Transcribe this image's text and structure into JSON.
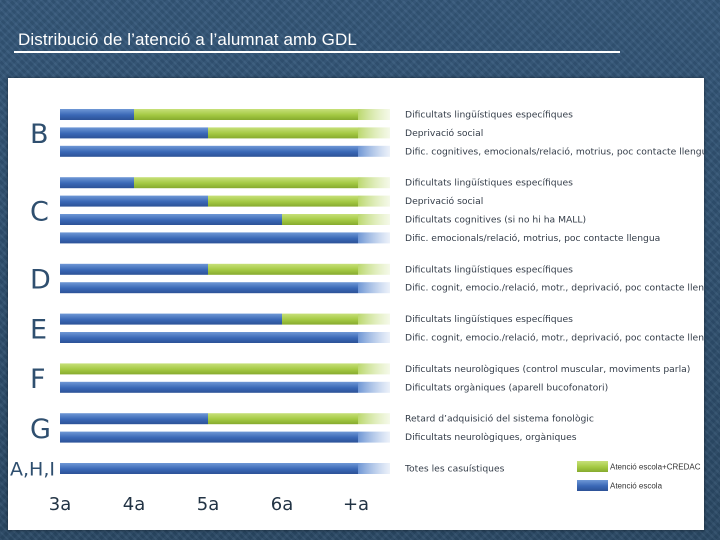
{
  "slide": {
    "title": "Distribució de l’atenció a l’alumnat amb GDL"
  },
  "colors": {
    "blue_dark": "#3a68b6",
    "blue_light": "#8fb4e3",
    "green": "#a4c943",
    "green_light": "#d6e9a4",
    "fade": "#e9eef6"
  },
  "chart_data": {
    "type": "bar",
    "orientation": "horizontal",
    "title": "",
    "x_ticks": [
      {
        "value": 3,
        "label": "3a"
      },
      {
        "value": 4,
        "label": "4a"
      },
      {
        "value": 5,
        "label": "5a"
      },
      {
        "value": 6,
        "label": "6a"
      },
      {
        "value": 7,
        "label": "+a"
      }
    ],
    "xlim": [
      3,
      7.5
    ],
    "groups": [
      {
        "label": "B",
        "rows": [
          {
            "label": "Dificultats lingüístiques específiques",
            "school_only_until": 4
          },
          {
            "label": "Deprivació social",
            "school_only_until": 5
          },
          {
            "label": "Dific. cognitives, emocionals/relació, motrius, poc contacte llengua",
            "school_only_until": 7.5
          }
        ]
      },
      {
        "label": "C",
        "rows": [
          {
            "label": "Dificultats lingüístiques específiques",
            "school_only_until": 4
          },
          {
            "label": "Deprivació social",
            "school_only_until": 5
          },
          {
            "label": "Dificultats cognitives (si no hi ha MALL)",
            "school_only_until": 6
          },
          {
            "label": "Dific. emocionals/relació, motrius, poc contacte llengua",
            "school_only_until": 7.5
          }
        ]
      },
      {
        "label": "D",
        "rows": [
          {
            "label": "Dificultats lingüístiques específiques",
            "school_only_until": 5
          },
          {
            "label": "Dific. cognit, emocio./relació, motr., deprivació, poc contacte llengua",
            "school_only_until": 7.5
          }
        ]
      },
      {
        "label": "E",
        "rows": [
          {
            "label": "Dificultats lingüístiques específiques",
            "school_only_until": 6
          },
          {
            "label": "Dific. cognit, emocio./relació, motr., deprivació, poc contacte llengua",
            "school_only_until": 7.5
          }
        ]
      },
      {
        "label": "F",
        "rows": [
          {
            "label": "Dificultats neurològiques (control muscular, moviments parla)",
            "school_only_until": 3
          },
          {
            "label": "Dificultats orgàniques (aparell bucofonatori)",
            "school_only_until": 7.5
          }
        ]
      },
      {
        "label": "G",
        "rows": [
          {
            "label": "Retard d’adquisició del sistema fonològic",
            "school_only_until": 5
          },
          {
            "label": "Dificultats neurològiques, orgàniques",
            "school_only_until": 7.5
          }
        ]
      },
      {
        "label": "A,H,I",
        "rows": [
          {
            "label": "Totes les casuístiques",
            "school_only_until": 7.5
          }
        ]
      }
    ],
    "legend": [
      {
        "label": "Atenció escola+CREDAC",
        "color": "green"
      },
      {
        "label": "Atenció escola",
        "color": "blue"
      }
    ],
    "legend_position": "bottom-right"
  }
}
